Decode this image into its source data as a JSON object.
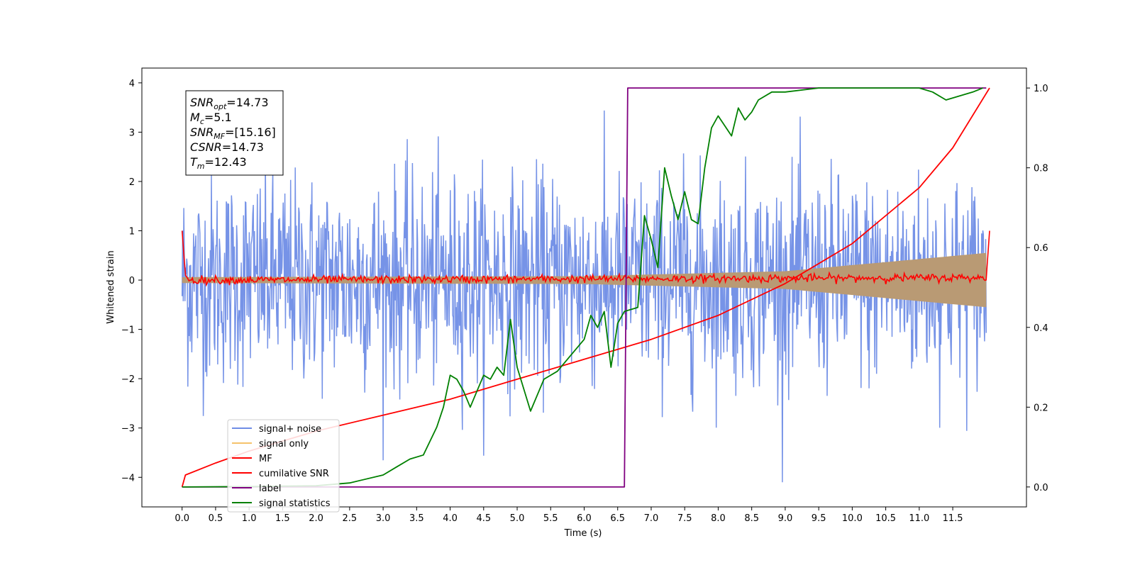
{
  "chart_data": {
    "type": "line",
    "xlabel": "Time (s)",
    "ylabel": "Whitened strain",
    "xlim": [
      -0.6,
      12.6
    ],
    "ylim": [
      -4.6,
      4.3
    ],
    "y2lim": [
      -0.05,
      1.05
    ],
    "xticks": [
      "0.0",
      "0.5",
      "1.0",
      "1.5",
      "2.0",
      "2.5",
      "3.0",
      "3.5",
      "4.0",
      "4.5",
      "5.0",
      "5.5",
      "6.0",
      "6.5",
      "7.0",
      "7.5",
      "8.0",
      "8.5",
      "9.0",
      "9.5",
      "10.0",
      "10.5",
      "11.0",
      "11.5"
    ],
    "yticks": [
      "4",
      "3",
      "2",
      "1",
      "0",
      "−1",
      "−2",
      "−3",
      "−4"
    ],
    "y2ticks": [
      "1.0",
      "0.8",
      "0.6",
      "0.4",
      "0.2",
      "0.0"
    ],
    "legend_position": "lower-left",
    "annotation": {
      "lines": [
        {
          "main": "SNR",
          "sub": "opt",
          "rest": "=14.73"
        },
        {
          "main": "M",
          "sub": "c",
          "rest": "=5.1"
        },
        {
          "main": "SNR",
          "sub": "MF",
          "rest": "=[15.16]"
        },
        {
          "main": "CSNR",
          "sub": "",
          "rest": "=14.73"
        },
        {
          "main": "T",
          "sub": "m",
          "rest": "=12.43"
        }
      ]
    },
    "series": [
      {
        "name": "signal+ noise",
        "color": "#6f8de6",
        "axis": "left",
        "kind": "noise",
        "x_range": [
          0,
          12
        ],
        "amplitude_range": [
          -4.1,
          3.5
        ]
      },
      {
        "name": "signal only",
        "color": "#f5c26b",
        "axis": "left",
        "kind": "envelope",
        "envelope": {
          "x": [
            0,
            6,
            9,
            12
          ],
          "y": [
            0.06,
            0.08,
            0.18,
            0.55
          ]
        }
      },
      {
        "name": "MF",
        "color": "#ff0000",
        "axis": "left",
        "kind": "mf",
        "x": [
          0,
          0.05,
          0.1,
          12.0,
          12.05
        ],
        "y": [
          1.0,
          0.1,
          0.0,
          0.05,
          1.0
        ]
      },
      {
        "name": "cumilative SNR",
        "color": "#ff0000",
        "axis": "right",
        "x": [
          0,
          0.05,
          0.5,
          1,
          2,
          3,
          4,
          5,
          6,
          7,
          8,
          9,
          10,
          11,
          11.5,
          12.05
        ],
        "y": [
          0.0,
          0.03,
          0.06,
          0.09,
          0.14,
          0.18,
          0.22,
          0.27,
          0.32,
          0.37,
          0.43,
          0.51,
          0.61,
          0.75,
          0.85,
          1.0
        ]
      },
      {
        "name": "label",
        "color": "#800080",
        "axis": "right",
        "x": [
          0,
          6.6,
          6.65,
          12.0
        ],
        "y": [
          0.0,
          0.0,
          1.0,
          1.0
        ]
      },
      {
        "name": "signal statistics",
        "color": "#008000",
        "axis": "right",
        "x": [
          0,
          1,
          2,
          2.5,
          3,
          3.2,
          3.4,
          3.6,
          3.8,
          3.9,
          4.0,
          4.1,
          4.2,
          4.3,
          4.4,
          4.5,
          4.6,
          4.7,
          4.8,
          4.9,
          5.0,
          5.2,
          5.4,
          5.6,
          5.8,
          6.0,
          6.1,
          6.2,
          6.3,
          6.4,
          6.5,
          6.6,
          6.8,
          6.9,
          7.0,
          7.1,
          7.2,
          7.3,
          7.4,
          7.5,
          7.6,
          7.7,
          7.8,
          7.9,
          8.0,
          8.2,
          8.3,
          8.4,
          8.5,
          8.6,
          8.8,
          9.0,
          9.5,
          10.0,
          10.5,
          11.0,
          11.2,
          11.4,
          11.6,
          11.8,
          11.95
        ],
        "y": [
          0.0,
          0.001,
          0.003,
          0.01,
          0.03,
          0.05,
          0.07,
          0.08,
          0.15,
          0.2,
          0.28,
          0.27,
          0.24,
          0.2,
          0.24,
          0.28,
          0.27,
          0.3,
          0.28,
          0.42,
          0.3,
          0.19,
          0.27,
          0.29,
          0.33,
          0.37,
          0.43,
          0.4,
          0.44,
          0.3,
          0.41,
          0.44,
          0.45,
          0.68,
          0.62,
          0.55,
          0.8,
          0.73,
          0.67,
          0.74,
          0.67,
          0.66,
          0.8,
          0.9,
          0.93,
          0.88,
          0.95,
          0.92,
          0.94,
          0.97,
          0.99,
          0.99,
          1.0,
          1.0,
          1.0,
          1.0,
          0.99,
          0.97,
          0.98,
          0.99,
          1.0
        ]
      }
    ]
  }
}
